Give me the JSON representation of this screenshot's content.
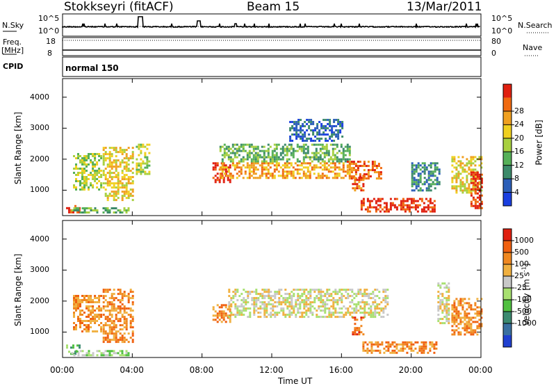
{
  "header": {
    "station": "Stokkseyri (fitACF)",
    "beam": "Beam 15",
    "date": "13/Mar/2011"
  },
  "panels": {
    "nsky": {
      "label": "N.Sky",
      "tick_top": "10^5",
      "tick_bottom": "10^0",
      "right_label": "N.Search",
      "right_tick_top": "10^5",
      "right_tick_bottom": "10^0"
    },
    "freq": {
      "label_line1": "Freq.",
      "label_line2": "[MHz]",
      "tick_top": "18",
      "tick_bottom": "8",
      "right_label": "Nave",
      "right_tick_top": "80",
      "right_tick_bottom": "0"
    },
    "cpid": {
      "label": "CPID",
      "mode": "normal 150"
    }
  },
  "chart_data": [
    {
      "type": "heatmap",
      "name": "power",
      "ylabel": "Slant Range [km]",
      "y_ticks": [
        1000,
        2000,
        3000,
        4000
      ],
      "ylim": [
        180,
        4600
      ],
      "x_ticks_hours": [
        0,
        4,
        8,
        12,
        16,
        20,
        24
      ],
      "colorbar": {
        "label": "Power [dB]",
        "ticks": [
          "4",
          "8",
          "12",
          "16",
          "20",
          "24",
          "28"
        ],
        "colors": [
          "#1a3fe0",
          "#2c5fb8",
          "#3c8a6a",
          "#56b058",
          "#a8d040",
          "#f0d020",
          "#f0a020",
          "#f06a10",
          "#e02010"
        ]
      },
      "echo_regions": [
        {
          "t": [
            0.2,
            1.0
          ],
          "r": [
            280,
            520
          ],
          "level": 8
        },
        {
          "t": [
            0.5,
            3.8
          ],
          "r": [
            280,
            450
          ],
          "level": 3
        },
        {
          "t": [
            0.6,
            2.2
          ],
          "r": [
            1000,
            2200
          ],
          "level": 4
        },
        {
          "t": [
            2.3,
            4.0
          ],
          "r": [
            700,
            2400
          ],
          "level": 5
        },
        {
          "t": [
            4.2,
            5.0
          ],
          "r": [
            1500,
            2500
          ],
          "level": 4
        },
        {
          "t": [
            8.6,
            9.6
          ],
          "r": [
            1250,
            1900
          ],
          "level": 8
        },
        {
          "t": [
            9.0,
            16.5
          ],
          "r": [
            1400,
            1900
          ],
          "level": 6
        },
        {
          "t": [
            9.0,
            16.5
          ],
          "r": [
            1900,
            2500
          ],
          "level": 3
        },
        {
          "t": [
            13.0,
            16.0
          ],
          "r": [
            2600,
            3300
          ],
          "level": 1
        },
        {
          "t": [
            16.3,
            18.3
          ],
          "r": [
            1400,
            1950
          ],
          "level": 7
        },
        {
          "t": [
            16.6,
            17.2
          ],
          "r": [
            1000,
            1500
          ],
          "level": 7
        },
        {
          "t": [
            17.1,
            21.4
          ],
          "r": [
            300,
            750
          ],
          "level": 8
        },
        {
          "t": [
            20.0,
            21.6
          ],
          "r": [
            1000,
            1900
          ],
          "level": 2
        },
        {
          "t": [
            22.3,
            24.0
          ],
          "r": [
            900,
            2100
          ],
          "level": 5
        },
        {
          "t": [
            23.4,
            24.0
          ],
          "r": [
            400,
            1600
          ],
          "level": 8
        }
      ]
    },
    {
      "type": "heatmap",
      "name": "velocity",
      "ylabel": "Slant Range [km]",
      "y_ticks": [
        1000,
        2000,
        3000,
        4000
      ],
      "ylim": [
        180,
        4600
      ],
      "xlabel": "Time UT",
      "x_ticks_hours": [
        0,
        4,
        8,
        12,
        16,
        20,
        24
      ],
      "x_tick_labels": [
        "00:00",
        "04:00",
        "08:00",
        "12:00",
        "16:00",
        "20:00",
        "00:00"
      ],
      "colorbar": {
        "label": "Velocity [m s",
        "label_superscript": "-1",
        "label_end": "]",
        "ticks": [
          "1000",
          "500",
          "100",
          "25",
          "-25",
          "-100",
          "-500",
          "-1000"
        ],
        "colors": [
          "#2040d0",
          "#3a70a0",
          "#3c8a70",
          "#50c040",
          "#a8e070",
          "#c8c8c8",
          "#f0b040",
          "#f08820",
          "#f06010",
          "#e02010"
        ]
      },
      "echo_regions": [
        {
          "t": [
            0.2,
            1.0
          ],
          "r": [
            300,
            600
          ],
          "level": 3
        },
        {
          "t": [
            0.5,
            3.8
          ],
          "r": [
            250,
            420
          ],
          "level": 4
        },
        {
          "t": [
            0.6,
            2.2
          ],
          "r": [
            1000,
            2200
          ],
          "level": 7
        },
        {
          "t": [
            2.3,
            4.0
          ],
          "r": [
            700,
            2400
          ],
          "level": 7
        },
        {
          "t": [
            8.6,
            9.6
          ],
          "r": [
            1300,
            1900
          ],
          "level": 7
        },
        {
          "t": [
            9.5,
            18.6
          ],
          "r": [
            1500,
            2400
          ],
          "level": 5
        },
        {
          "t": [
            16.6,
            17.2
          ],
          "r": [
            900,
            1500
          ],
          "level": 8
        },
        {
          "t": [
            17.2,
            21.4
          ],
          "r": [
            300,
            700
          ],
          "level": 7
        },
        {
          "t": [
            21.5,
            22.2
          ],
          "r": [
            1300,
            2600
          ],
          "level": 5
        },
        {
          "t": [
            22.3,
            24.0
          ],
          "r": [
            900,
            2100
          ],
          "level": 7
        }
      ]
    }
  ]
}
